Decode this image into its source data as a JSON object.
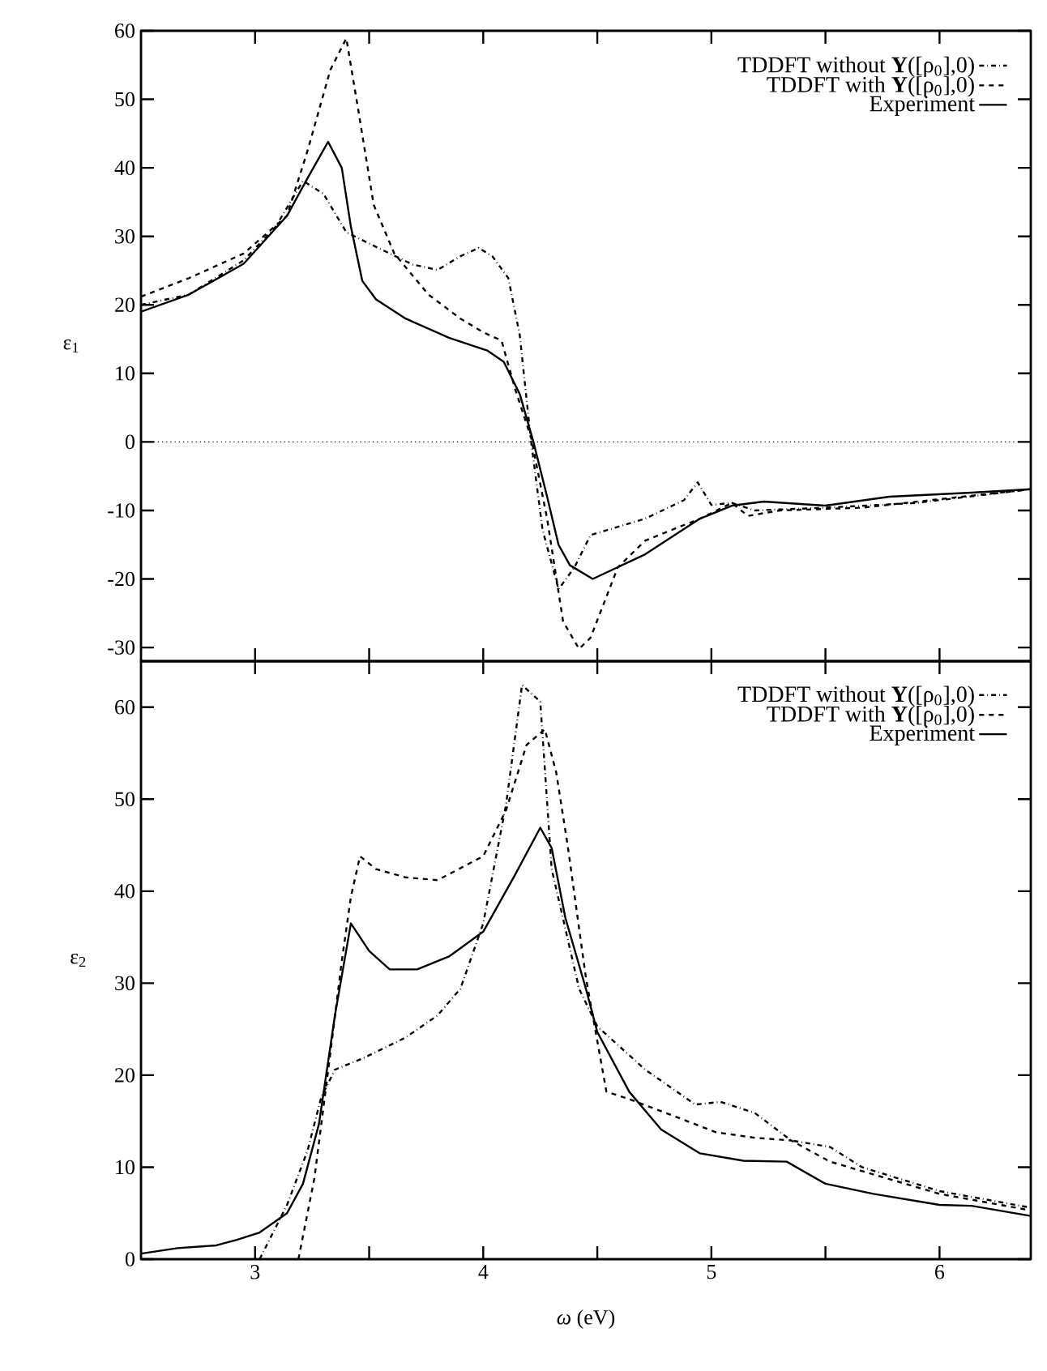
{
  "chart_data": [
    {
      "type": "line",
      "ylabel": "ε$_{1}$",
      "xlim": [
        2.5,
        6.4
      ],
      "ylim": [
        -32,
        60
      ],
      "xticks": [
        3,
        {
          "value": 3.5,
          "label": null
        },
        4,
        {
          "value": 4.5,
          "label": null
        },
        5,
        {
          "value": 5.5,
          "label": null
        },
        6
      ],
      "yticks": [
        -30,
        -20,
        -10,
        0,
        10,
        20,
        30,
        40,
        50,
        60
      ],
      "tick_labels": "y",
      "legend": "top right",
      "ref_lines": [
        {
          "axis": "y",
          "value": 0,
          "color": "#000000",
          "line_style": "dotted"
        }
      ],
      "series": [
        {
          "name": "TDDFT without **Y**([ρ$_{0}$],0)",
          "color": "#000000",
          "line_style": "dashdot",
          "x": [
            2.5,
            2.71,
            2.95,
            3.09,
            3.21,
            3.3,
            3.4,
            3.54,
            3.69,
            3.8,
            3.9,
            3.98,
            4.04,
            4.11,
            4.16,
            4.21,
            4.26,
            4.33,
            4.4,
            4.47,
            4.71,
            4.88,
            4.94,
            5.0,
            5.09,
            5.19,
            5.5,
            5.9,
            6.4
          ],
          "values": [
            20,
            21.5,
            26.5,
            31.4,
            38.1,
            36.2,
            30.6,
            28.3,
            25.9,
            25.1,
            27.1,
            28.3,
            27.1,
            23.9,
            15.6,
            0,
            -12.8,
            -21.5,
            -18.3,
            -13.6,
            -11.2,
            -8.5,
            -5.9,
            -9.2,
            -8.9,
            -10,
            -9.6,
            -8.9,
            -6.9
          ]
        },
        {
          "name": "TDDFT with **Y**([ρ$_{0}$],0)",
          "color": "#000000",
          "line_style": "dashed",
          "x": [
            2.5,
            2.71,
            2.95,
            3.14,
            3.23,
            3.33,
            3.4,
            3.45,
            3.52,
            3.61,
            3.76,
            3.9,
            4.0,
            4.08,
            4.14,
            4.21,
            4.28,
            4.35,
            4.42,
            4.47,
            4.59,
            4.71,
            4.95,
            5.09,
            5.16,
            5.3,
            5.66,
            6.4
          ],
          "values": [
            21.2,
            23.9,
            27.5,
            33,
            42.5,
            54.3,
            58.9,
            48.9,
            34.6,
            27.5,
            21.5,
            18,
            16,
            14.8,
            7.7,
            0.6,
            -11.2,
            -26.2,
            -30.2,
            -28.6,
            -18.3,
            -14.4,
            -11.2,
            -8.9,
            -10.8,
            -10,
            -9.6,
            -6.9
          ]
        },
        {
          "name": "Experiment",
          "color": "#000000",
          "line_style": "solid",
          "x": [
            2.5,
            2.71,
            2.95,
            3.14,
            3.23,
            3.32,
            3.38,
            3.42,
            3.47,
            3.53,
            3.66,
            3.85,
            4.02,
            4.09,
            4.16,
            4.22,
            4.28,
            4.33,
            4.38,
            4.48,
            4.71,
            4.95,
            5.09,
            5.23,
            5.5,
            5.78,
            6.14,
            6.4
          ],
          "values": [
            19,
            21.5,
            26,
            33,
            38.5,
            43.8,
            40,
            31.4,
            23.5,
            20.8,
            18,
            15.2,
            13.3,
            11.7,
            7,
            0,
            -8,
            -15,
            -18,
            -20,
            -16.4,
            -11.2,
            -9.3,
            -8.7,
            -9.3,
            -8,
            -7.4,
            -6.9
          ]
        }
      ]
    },
    {
      "type": "line",
      "xlabel": "*ω* (eV)",
      "ylabel": "ε$_{2}$",
      "xlim": [
        2.5,
        6.4
      ],
      "ylim": [
        0,
        65
      ],
      "xticks": [
        3,
        {
          "value": 3.5,
          "label": null
        },
        4,
        {
          "value": 4.5,
          "label": null
        },
        5,
        {
          "value": 5.5,
          "label": null
        },
        6
      ],
      "yticks": [
        0,
        10,
        20,
        30,
        40,
        50,
        60
      ],
      "legend": "top right",
      "series": [
        {
          "name": "TDDFT without **Y**([ρ$_{0}$],0)",
          "color": "#000000",
          "line_style": "dashdot",
          "x": [
            3.02,
            3.14,
            3.23,
            3.29,
            3.35,
            3.47,
            3.66,
            3.8,
            3.9,
            4.0,
            4.1,
            4.17,
            4.25,
            4.3,
            4.35,
            4.42,
            4.5,
            4.71,
            4.93,
            5.04,
            5.19,
            5.35,
            5.52,
            5.66,
            6.0,
            6.4
          ],
          "values": [
            0,
            5.9,
            11.8,
            17.6,
            20.6,
            21.8,
            24.1,
            26.5,
            29.4,
            36.5,
            49.4,
            62.4,
            60.6,
            42.4,
            37,
            29.4,
            25.3,
            20.6,
            16.8,
            17.1,
            15.9,
            12.9,
            12.2,
            10,
            7.4,
            5.6
          ]
        },
        {
          "name": "TDDFT with **Y**([ρ$_{0}$],0)",
          "color": "#000000",
          "line_style": "dashed",
          "x": [
            3.19,
            3.26,
            3.33,
            3.38,
            3.42,
            3.46,
            3.53,
            3.66,
            3.8,
            4.0,
            4.1,
            4.19,
            4.27,
            4.32,
            4.37,
            4.45,
            4.54,
            4.64,
            4.8,
            5.02,
            5.19,
            5.35,
            5.52,
            6.0,
            6.4
          ],
          "values": [
            0,
            8.8,
            22.4,
            32.4,
            39.4,
            43.8,
            42.4,
            41.5,
            41.2,
            43.8,
            48.8,
            55.9,
            57.6,
            52.9,
            45,
            30.6,
            18.2,
            17.4,
            15.9,
            13.8,
            13.2,
            12.9,
            10.6,
            7.1,
            5.3
          ]
        },
        {
          "name": "Experiment",
          "color": "#000000",
          "line_style": "solid",
          "x": [
            2.5,
            2.66,
            2.83,
            2.92,
            3.02,
            3.14,
            3.21,
            3.28,
            3.35,
            3.42,
            3.5,
            3.59,
            3.71,
            3.85,
            4.0,
            4.14,
            4.25,
            4.3,
            4.36,
            4.45,
            4.5,
            4.64,
            4.78,
            4.95,
            5.14,
            5.33,
            5.5,
            5.71,
            6.0,
            6.14,
            6.4
          ],
          "values": [
            0.6,
            1.2,
            1.5,
            2.1,
            2.9,
            5,
            8.2,
            14.7,
            26.5,
            36.5,
            33.5,
            31.5,
            31.5,
            32.9,
            35.6,
            41.8,
            46.9,
            44.7,
            37.1,
            29.4,
            24.7,
            18.2,
            14.1,
            11.5,
            10.7,
            10.6,
            8.2,
            7.1,
            5.9,
            5.8,
            4.7
          ]
        }
      ]
    }
  ]
}
